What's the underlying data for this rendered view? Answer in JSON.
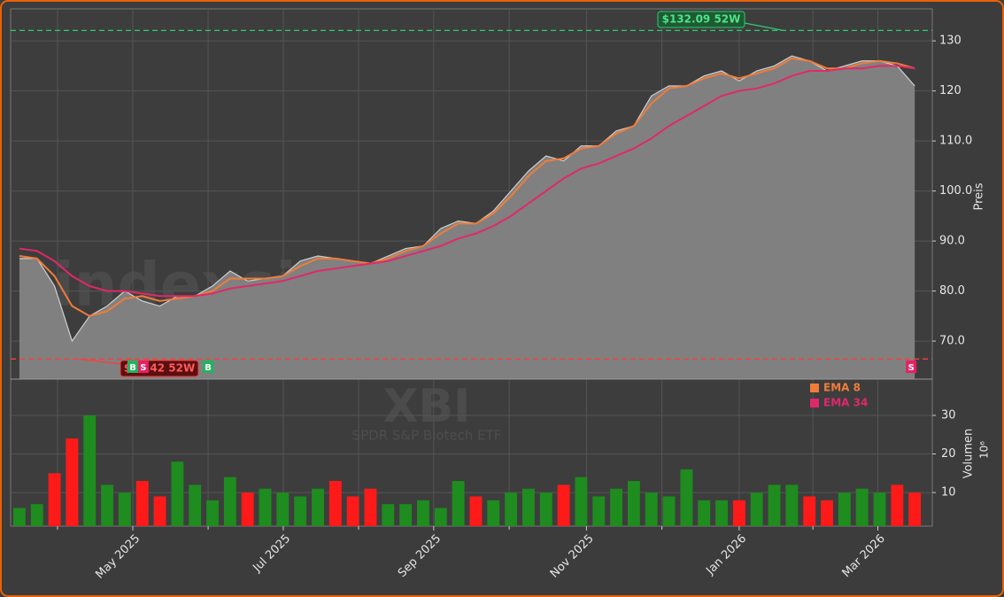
{
  "chart_data": {
    "type": "price-volume",
    "watermark": "indexsignale.trade",
    "symbol": "XBI",
    "symbol_name": "SPDR S&P Biotech ETF",
    "xlim": [
      -0.5,
      52
    ],
    "xticks": [
      {
        "value": 6.46,
        "label": "May 2025"
      },
      {
        "value": 15.03,
        "label": "Jul 2025"
      },
      {
        "value": 23.6,
        "label": "Sep 2025"
      },
      {
        "value": 32.3,
        "label": "Nov 2025"
      },
      {
        "value": 41.0,
        "label": "Jan 2026"
      },
      {
        "value": 48.9,
        "label": "Mar 2026"
      }
    ],
    "xminor": [
      2.17,
      10.75,
      19.32,
      27.9,
      36.6,
      45.2
    ],
    "price": {
      "ylabel": "Preis",
      "ylim": [
        62.4,
        136.4
      ],
      "yticks": [
        {
          "value": 70,
          "label": "70.0"
        },
        {
          "value": 80,
          "label": "80.0"
        },
        {
          "value": 90,
          "label": "90.0"
        },
        {
          "value": 100,
          "label": "100.0"
        },
        {
          "value": 110,
          "label": "110.0"
        },
        120,
        130
      ],
      "close": [
        86.5,
        86.5,
        81,
        70,
        75,
        77,
        80,
        78,
        77,
        79,
        79,
        81,
        84,
        82,
        82.5,
        83,
        86,
        87,
        86.5,
        86,
        85.5,
        87,
        88.5,
        89,
        92.5,
        94,
        93.5,
        96,
        100,
        104,
        107,
        106,
        109,
        109,
        112,
        113,
        119,
        121,
        121,
        123,
        124,
        122,
        124,
        125,
        127,
        126,
        124,
        125,
        126,
        126,
        125,
        121
      ],
      "series": [
        {
          "name": "EMA 8",
          "color": "#f07c3a",
          "values": [
            87,
            86.5,
            83,
            77,
            75,
            76,
            78.5,
            79,
            78,
            78.5,
            79,
            80,
            82.5,
            82.5,
            82.5,
            83,
            85,
            86.5,
            86.5,
            86,
            85.5,
            86.5,
            88,
            89,
            91.5,
            93.5,
            93.5,
            95.5,
            99,
            103,
            106,
            106.5,
            108.5,
            109,
            111.5,
            113,
            117.5,
            120.5,
            121,
            122.5,
            123.5,
            122.5,
            123.5,
            124.5,
            126.5,
            126,
            124.5,
            124.5,
            125.5,
            126,
            125.5,
            124.5
          ]
        },
        {
          "name": "EMA 34",
          "color": "#e0286a",
          "values": [
            88.5,
            88,
            86,
            83,
            81,
            80,
            80,
            79.5,
            79,
            79,
            79,
            79.5,
            80.5,
            81,
            81.5,
            82,
            83,
            84,
            84.5,
            85,
            85.5,
            86,
            87,
            88,
            89,
            90.5,
            91.5,
            93,
            95,
            97.5,
            100,
            102.5,
            104.5,
            105.5,
            107,
            108.5,
            110.5,
            113,
            115,
            117,
            119,
            120,
            120.5,
            121.5,
            123,
            124,
            124,
            124.5,
            124.5,
            125,
            125,
            124.5
          ]
        }
      ],
      "high": {
        "value": 132.09,
        "label": "$132.09 52W",
        "x": 43.5
      },
      "low": {
        "value": 66.42,
        "label": "$66.42 52W",
        "x": 3.4
      },
      "signals": [
        {
          "label": "B",
          "x": 6.46
        },
        {
          "label": "S",
          "x": 7.06
        },
        {
          "label": "B",
          "x": 10.75
        },
        {
          "label": "S",
          "x": 50.8
        }
      ]
    },
    "volume": {
      "ylabel": "Volumen",
      "unit": "10⁶",
      "ylim": [
        1.3,
        39.4
      ],
      "yticks": [
        10,
        20,
        30
      ],
      "values": [
        6,
        7,
        15,
        24,
        30,
        12,
        10,
        13,
        9,
        18,
        12,
        8,
        14,
        10,
        11,
        10,
        9,
        11,
        13,
        9,
        11,
        7,
        7,
        8,
        6,
        13,
        9,
        8,
        10,
        11,
        10,
        12,
        14,
        9,
        11,
        13,
        10,
        9,
        16,
        8,
        8,
        8,
        10,
        12,
        12,
        9,
        8,
        10,
        11,
        10,
        12,
        10
      ]
    }
  }
}
